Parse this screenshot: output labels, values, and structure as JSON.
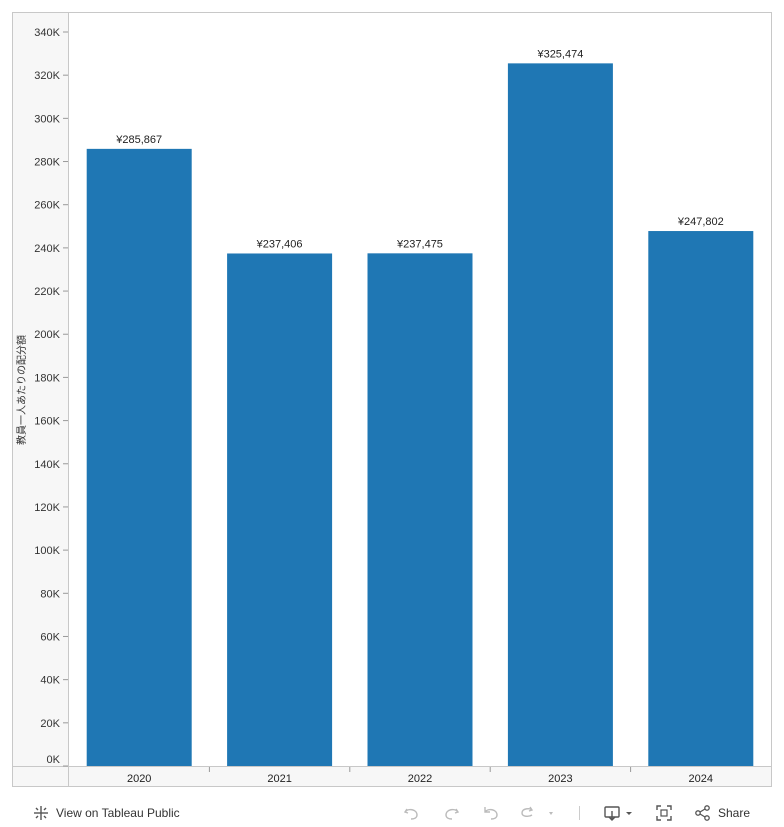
{
  "chart_data": {
    "type": "bar",
    "title": "",
    "xlabel": "",
    "ylabel": "教員一人あたりの配分額",
    "categories": [
      "2020",
      "2021",
      "2022",
      "2023",
      "2024"
    ],
    "values": [
      285867,
      237406,
      237475,
      325474,
      247802
    ],
    "data_labels": [
      "¥285,867",
      "¥237,406",
      "¥237,475",
      "¥325,474",
      "¥247,802"
    ],
    "ylim": [
      0,
      340000
    ],
    "yticks": [
      0,
      20000,
      40000,
      60000,
      80000,
      100000,
      120000,
      140000,
      160000,
      180000,
      200000,
      220000,
      240000,
      260000,
      280000,
      300000,
      320000,
      340000
    ],
    "ytick_labels": [
      "0K",
      "20K",
      "40K",
      "60K",
      "80K",
      "100K",
      "120K",
      "140K",
      "160K",
      "180K",
      "200K",
      "220K",
      "240K",
      "260K",
      "280K",
      "300K",
      "320K",
      "340K"
    ],
    "grid": false,
    "legend": "none",
    "bar_color": "#1f77b4"
  },
  "toolbar": {
    "view_label": "View on Tableau Public",
    "share_label": "Share"
  },
  "icons": {
    "tableau": "tableau-logo-icon",
    "undo": "undo-icon",
    "redo": "redo-icon",
    "revert": "revert-icon",
    "refresh": "refresh-icon",
    "download": "download-icon",
    "fullscreen": "fullscreen-icon",
    "share": "share-icon"
  }
}
